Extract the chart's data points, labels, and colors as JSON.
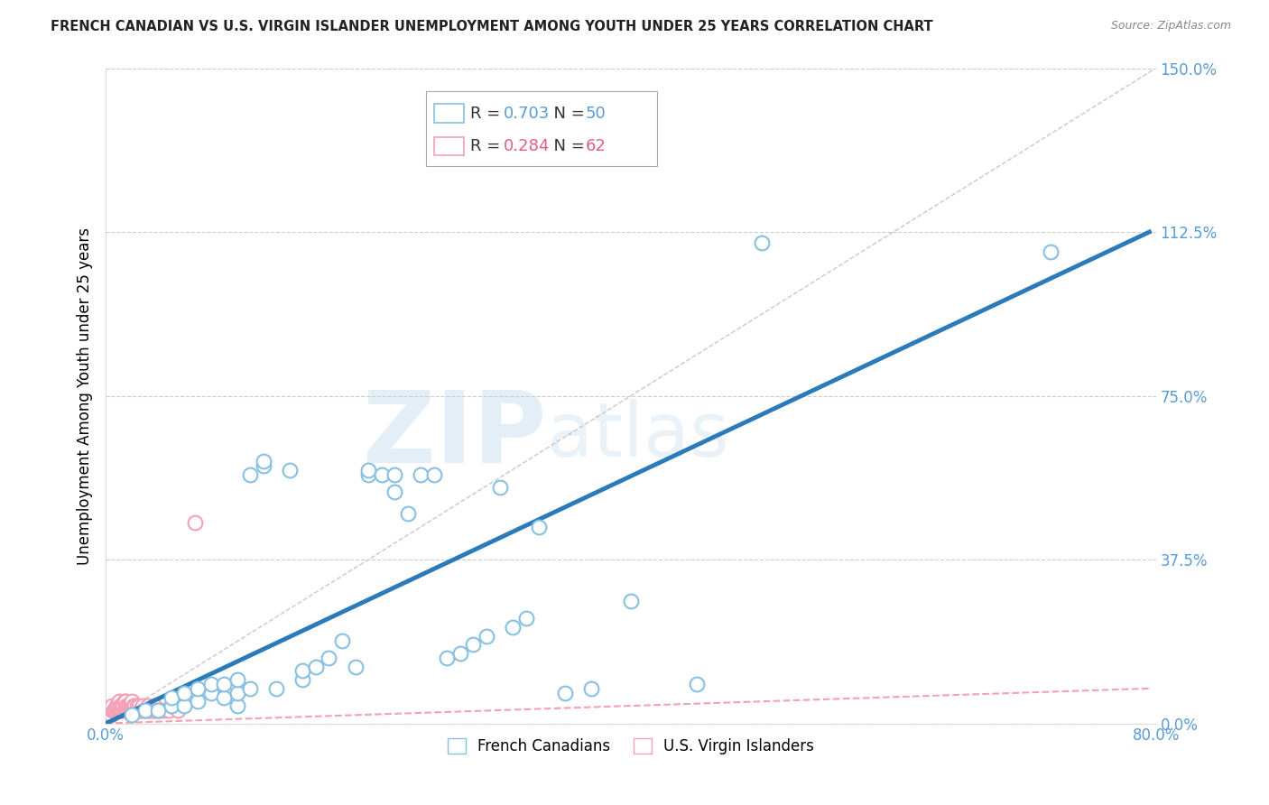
{
  "title": "FRENCH CANADIAN VS U.S. VIRGIN ISLANDER UNEMPLOYMENT AMONG YOUTH UNDER 25 YEARS CORRELATION CHART",
  "source": "Source: ZipAtlas.com",
  "ylabel": "Unemployment Among Youth under 25 years",
  "xlim": [
    0,
    0.8
  ],
  "ylim": [
    0,
    1.5
  ],
  "yticks": [
    0,
    0.375,
    0.75,
    1.125,
    1.5
  ],
  "ytick_labels": [
    "0.0%",
    "37.5%",
    "75.0%",
    "112.5%",
    "150.0%"
  ],
  "xticks": [
    0,
    0.2,
    0.4,
    0.6,
    0.8
  ],
  "xtick_labels": [
    "0.0%",
    "",
    "",
    "",
    "80.0%"
  ],
  "blue_R": "0.703",
  "blue_N": "50",
  "pink_R": "0.284",
  "pink_N": "62",
  "blue_scatter_color": "#88c0e0",
  "pink_scatter_color": "#f4a0b5",
  "blue_line_color": "#2b7bba",
  "pink_line_color": "#e06080",
  "ref_line_color": "#bbbbbb",
  "grid_color": "#cccccc",
  "tick_label_color": "#5b9bd5",
  "legend_R_N_color": "#5b9bd5",
  "legend_pink_R_N_color": "#e06080",
  "blue_scatter_x": [
    0.02,
    0.03,
    0.04,
    0.05,
    0.05,
    0.06,
    0.06,
    0.07,
    0.07,
    0.08,
    0.08,
    0.09,
    0.09,
    0.1,
    0.1,
    0.1,
    0.11,
    0.11,
    0.12,
    0.12,
    0.13,
    0.14,
    0.15,
    0.15,
    0.16,
    0.17,
    0.18,
    0.19,
    0.2,
    0.2,
    0.21,
    0.22,
    0.22,
    0.23,
    0.24,
    0.25,
    0.26,
    0.27,
    0.28,
    0.29,
    0.3,
    0.31,
    0.32,
    0.33,
    0.35,
    0.37,
    0.4,
    0.45,
    0.5,
    0.72
  ],
  "blue_scatter_y": [
    0.02,
    0.03,
    0.03,
    0.04,
    0.06,
    0.04,
    0.07,
    0.05,
    0.08,
    0.07,
    0.09,
    0.06,
    0.09,
    0.04,
    0.07,
    0.1,
    0.08,
    0.57,
    0.59,
    0.6,
    0.08,
    0.58,
    0.1,
    0.12,
    0.13,
    0.15,
    0.19,
    0.13,
    0.57,
    0.58,
    0.57,
    0.53,
    0.57,
    0.48,
    0.57,
    0.57,
    0.15,
    0.16,
    0.18,
    0.2,
    0.54,
    0.22,
    0.24,
    0.45,
    0.07,
    0.08,
    0.28,
    0.09,
    1.1,
    1.08
  ],
  "pink_scatter_x": [
    0.003,
    0.004,
    0.005,
    0.005,
    0.006,
    0.007,
    0.008,
    0.008,
    0.009,
    0.009,
    0.01,
    0.01,
    0.01,
    0.011,
    0.011,
    0.012,
    0.012,
    0.013,
    0.013,
    0.014,
    0.014,
    0.015,
    0.015,
    0.015,
    0.016,
    0.016,
    0.017,
    0.017,
    0.018,
    0.018,
    0.019,
    0.019,
    0.02,
    0.02,
    0.02,
    0.021,
    0.021,
    0.022,
    0.022,
    0.023,
    0.024,
    0.025,
    0.025,
    0.026,
    0.027,
    0.028,
    0.029,
    0.03,
    0.031,
    0.032,
    0.033,
    0.035,
    0.036,
    0.037,
    0.038,
    0.04,
    0.042,
    0.045,
    0.048,
    0.05,
    0.055,
    0.068
  ],
  "pink_scatter_y": [
    0.02,
    0.02,
    0.03,
    0.04,
    0.03,
    0.03,
    0.03,
    0.04,
    0.03,
    0.04,
    0.03,
    0.04,
    0.05,
    0.03,
    0.04,
    0.03,
    0.04,
    0.03,
    0.04,
    0.03,
    0.05,
    0.03,
    0.04,
    0.05,
    0.03,
    0.04,
    0.03,
    0.04,
    0.03,
    0.04,
    0.03,
    0.04,
    0.03,
    0.04,
    0.05,
    0.03,
    0.04,
    0.03,
    0.04,
    0.03,
    0.04,
    0.03,
    0.04,
    0.03,
    0.03,
    0.04,
    0.03,
    0.03,
    0.03,
    0.04,
    0.03,
    0.03,
    0.03,
    0.04,
    0.03,
    0.03,
    0.03,
    0.03,
    0.03,
    0.04,
    0.03,
    0.46
  ],
  "blue_regline_x": [
    0.0,
    0.795
  ],
  "blue_regline_y": [
    0.0,
    1.125
  ],
  "pink_regline_x": [
    0.0,
    0.795
  ],
  "pink_regline_y": [
    0.0,
    0.08
  ],
  "ref_line_x": [
    0.0,
    0.8
  ],
  "ref_line_y": [
    0.0,
    1.5
  ]
}
